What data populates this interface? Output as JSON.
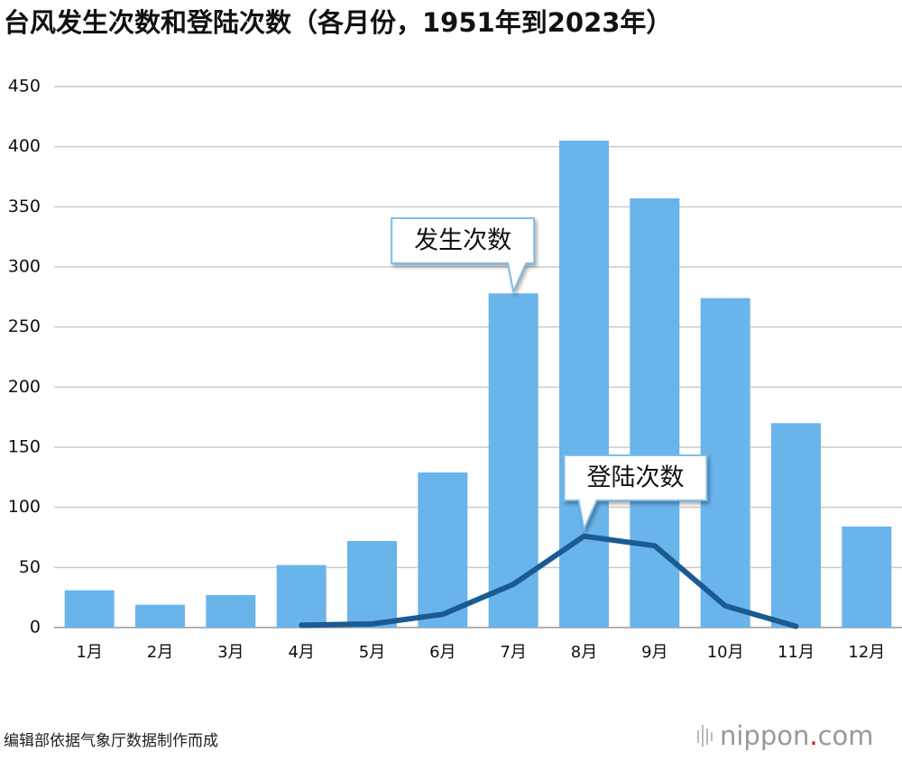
{
  "chart_data": {
    "type": "bar",
    "title": "台风发生次数和登陆次数（各月份，1951年到2023年）",
    "categories": [
      "1月",
      "2月",
      "3月",
      "4月",
      "5月",
      "6月",
      "7月",
      "8月",
      "9月",
      "10月",
      "11月",
      "12月"
    ],
    "series": [
      {
        "name": "发生次数",
        "type": "bar",
        "color": "#6ab4ec",
        "values": [
          31,
          19,
          27,
          52,
          72,
          129,
          278,
          405,
          357,
          274,
          170,
          84
        ]
      },
      {
        "name": "登陆次数",
        "type": "line",
        "color": "#1b5b92",
        "values": [
          null,
          null,
          null,
          2,
          3,
          11,
          36,
          76,
          68,
          18,
          1,
          null
        ]
      }
    ],
    "ylim": [
      0,
      450
    ],
    "yticks": [
      0,
      50,
      100,
      150,
      200,
      250,
      300,
      350,
      400,
      450
    ],
    "grid": true,
    "source": "编辑部依据气象厅数据制作而成",
    "logo": {
      "name": "nippon",
      "dot": ".",
      "tld": "com"
    }
  }
}
